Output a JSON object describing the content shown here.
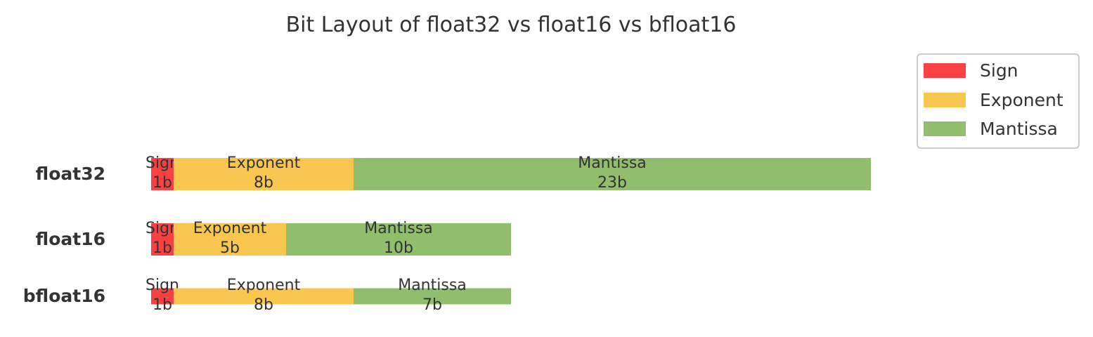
{
  "chart_data": {
    "type": "bar",
    "orientation": "horizontal",
    "stacked": true,
    "title": "Bit Layout of float32 vs float16 vs bfloat16",
    "categories": [
      "float32",
      "float16",
      "bfloat16"
    ],
    "series": [
      {
        "name": "Sign",
        "color": "#f94144",
        "values": [
          1,
          1,
          1
        ],
        "value_labels": [
          "1b",
          "1b",
          "1b"
        ]
      },
      {
        "name": "Exponent",
        "color": "#f9c74f",
        "values": [
          8,
          5,
          8
        ],
        "value_labels": [
          "8b",
          "5b",
          "8b"
        ]
      },
      {
        "name": "Mantissa",
        "color": "#90be6d",
        "values": [
          23,
          10,
          7
        ],
        "value_labels": [
          "23b",
          "10b",
          "7b"
        ]
      }
    ],
    "xlabel": "",
    "ylabel": "",
    "xlim": [
      0,
      32
    ],
    "grid": false,
    "axes_visible": false,
    "legend": {
      "position": "upper-right",
      "entries": [
        "Sign",
        "Exponent",
        "Mantissa"
      ]
    }
  }
}
